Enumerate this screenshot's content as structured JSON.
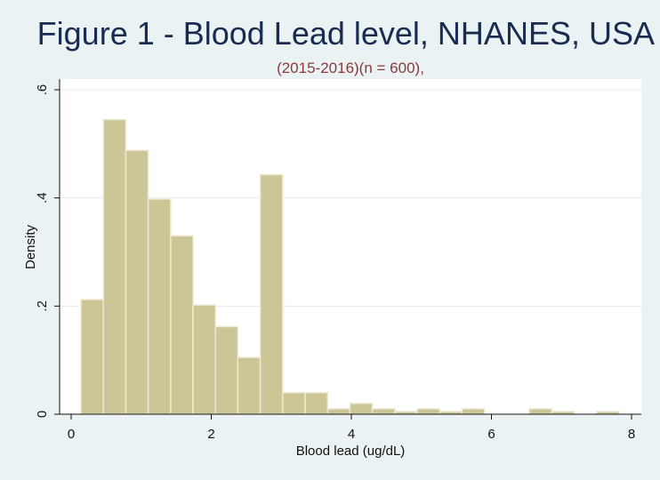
{
  "chart_data": {
    "type": "bar",
    "title": "Figure 1 - Blood Lead level, NHANES, USA",
    "subtitle": "(2015-2016)(n = 600),",
    "xlabel": "Blood lead (ug/dL)",
    "ylabel": "Density",
    "xlim": [
      0,
      8
    ],
    "ylim": [
      0,
      0.6
    ],
    "x_ticks": [
      0,
      2,
      4,
      6,
      8
    ],
    "x_tick_labels": [
      "0",
      "2",
      "4",
      "6",
      "8"
    ],
    "y_ticks": [
      0,
      0.2,
      0.4,
      0.6
    ],
    "y_tick_labels": [
      "0",
      ".2",
      ".4",
      ".6"
    ],
    "grid": true,
    "legend": "none",
    "bin_width": 0.32,
    "bins": [
      {
        "x0": 0.14,
        "x1": 0.46,
        "density": 0.212
      },
      {
        "x0": 0.46,
        "x1": 0.78,
        "density": 0.545
      },
      {
        "x0": 0.78,
        "x1": 1.1,
        "density": 0.488
      },
      {
        "x0": 1.1,
        "x1": 1.42,
        "density": 0.398
      },
      {
        "x0": 1.42,
        "x1": 1.74,
        "density": 0.33
      },
      {
        "x0": 1.74,
        "x1": 2.06,
        "density": 0.202
      },
      {
        "x0": 2.06,
        "x1": 2.38,
        "density": 0.162
      },
      {
        "x0": 2.38,
        "x1": 2.7,
        "density": 0.105
      },
      {
        "x0": 2.7,
        "x1": 3.02,
        "density": 0.443
      },
      {
        "x0": 3.02,
        "x1": 3.34,
        "density": 0.04
      },
      {
        "x0": 3.34,
        "x1": 3.66,
        "density": 0.04
      },
      {
        "x0": 3.66,
        "x1": 3.98,
        "density": 0.01
      },
      {
        "x0": 3.98,
        "x1": 4.3,
        "density": 0.02
      },
      {
        "x0": 4.3,
        "x1": 4.62,
        "density": 0.01
      },
      {
        "x0": 4.62,
        "x1": 4.94,
        "density": 0.005
      },
      {
        "x0": 4.94,
        "x1": 5.26,
        "density": 0.01
      },
      {
        "x0": 5.26,
        "x1": 5.58,
        "density": 0.005
      },
      {
        "x0": 5.58,
        "x1": 5.9,
        "density": 0.01
      },
      {
        "x0": 5.9,
        "x1": 6.22,
        "density": 0.0
      },
      {
        "x0": 6.22,
        "x1": 6.54,
        "density": 0.0
      },
      {
        "x0": 6.54,
        "x1": 6.86,
        "density": 0.01
      },
      {
        "x0": 6.86,
        "x1": 7.18,
        "density": 0.005
      },
      {
        "x0": 7.18,
        "x1": 7.5,
        "density": 0.0
      },
      {
        "x0": 7.5,
        "x1": 7.82,
        "density": 0.005
      }
    ]
  },
  "colors": {
    "background": "#eaf2f3",
    "plot_area": "#ffffff",
    "bar_fill": "#ccc596",
    "bar_edge": "#ece9d4",
    "gridline": "#e6ecee",
    "axis": "#111111",
    "title": "#1a2b52",
    "subtitle": "#8b3a3a"
  }
}
